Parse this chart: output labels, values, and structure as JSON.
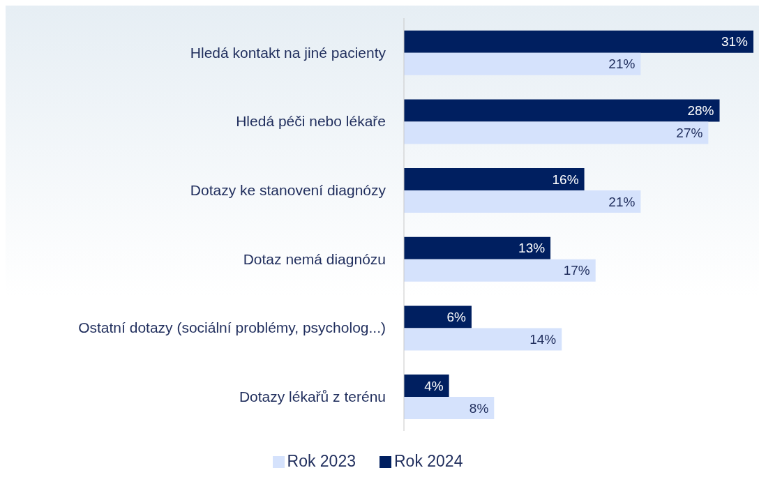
{
  "chart_data": {
    "type": "bar",
    "orientation": "horizontal",
    "categories": [
      "Hledá kontakt na jiné pacienty",
      "Hledá péči nebo lékaře",
      "Dotazy ke stanovení diagnózy",
      "Dotaz nemá diagnózu",
      "Ostatní dotazy (sociální problémy, psycholog...)",
      "Dotazy lékařů z terénu"
    ],
    "series": [
      {
        "name": "Rok 2024",
        "color": "#001f60",
        "values": [
          31,
          28,
          16,
          13,
          6,
          4
        ],
        "value_labels": [
          "31%",
          "28%",
          "16%",
          "13%",
          "6%",
          "4%"
        ]
      },
      {
        "name": "Rok 2023",
        "color": "#d5e2fc",
        "values": [
          21,
          27,
          21,
          17,
          14,
          8
        ],
        "value_labels": [
          "21%",
          "27%",
          "21%",
          "17%",
          "14%",
          "8%"
        ]
      }
    ],
    "legend": "bottom"
  }
}
